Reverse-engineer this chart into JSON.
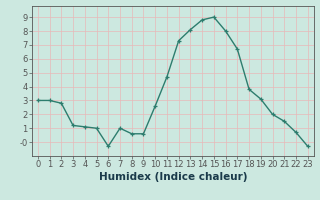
{
  "x": [
    0,
    1,
    2,
    3,
    4,
    5,
    6,
    7,
    8,
    9,
    10,
    11,
    12,
    13,
    14,
    15,
    16,
    17,
    18,
    19,
    20,
    21,
    22,
    23
  ],
  "y": [
    3.0,
    3.0,
    2.8,
    1.2,
    1.1,
    1.0,
    -0.3,
    1.0,
    0.6,
    0.6,
    2.6,
    4.7,
    7.3,
    8.1,
    8.8,
    9.0,
    8.0,
    6.7,
    3.8,
    3.1,
    2.0,
    1.5,
    0.7,
    -0.3
  ],
  "line_color": "#2d7d6e",
  "marker": "+",
  "marker_color": "#2d7d6e",
  "bg_color": "#cce8e0",
  "grid_color": "#e8b8b8",
  "axis_color": "#555555",
  "xlabel": "Humidex (Indice chaleur)",
  "xlim": [
    -0.5,
    23.5
  ],
  "ylim": [
    -1.0,
    9.8
  ],
  "yticks": [
    0,
    1,
    2,
    3,
    4,
    5,
    6,
    7,
    8,
    9
  ],
  "ytick_labels": [
    "-0",
    "1",
    "2",
    "3",
    "4",
    "5",
    "6",
    "7",
    "8",
    "9"
  ],
  "xticks": [
    0,
    1,
    2,
    3,
    4,
    5,
    6,
    7,
    8,
    9,
    10,
    11,
    12,
    13,
    14,
    15,
    16,
    17,
    18,
    19,
    20,
    21,
    22,
    23
  ],
  "tick_fontsize": 6.0,
  "xlabel_fontsize": 7.5,
  "linewidth": 1.0,
  "markersize": 3.5,
  "markeredgewidth": 0.9
}
